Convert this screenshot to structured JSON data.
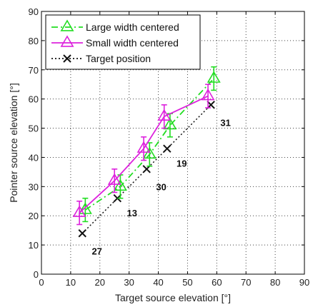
{
  "chart_data": {
    "type": "line",
    "xlabel": "Target source elevation [°]",
    "ylabel": "Pointer source elevation [°]",
    "xlim": [
      0,
      90
    ],
    "ylim": [
      0,
      90
    ],
    "xticks": [
      0,
      10,
      20,
      30,
      40,
      50,
      60,
      70,
      80,
      90
    ],
    "yticks": [
      0,
      10,
      20,
      30,
      40,
      50,
      60,
      70,
      80,
      90
    ],
    "grid": true,
    "legend_position": "top-left",
    "series": [
      {
        "name": "Large width centered",
        "color": "#22dd22",
        "style": "dash-dot",
        "marker": "triangle",
        "x": [
          15,
          27,
          37,
          44,
          59
        ],
        "y": [
          22,
          30,
          41,
          51,
          67
        ],
        "err": [
          4,
          4,
          4,
          4,
          4
        ]
      },
      {
        "name": "Small width centered",
        "color": "#dd22dd",
        "style": "solid",
        "marker": "triangle",
        "x": [
          13,
          25,
          35,
          42,
          57
        ],
        "y": [
          21,
          32,
          43,
          54,
          61
        ],
        "err": [
          4,
          4,
          4,
          4,
          4
        ]
      },
      {
        "name": "Target position",
        "color": "#111111",
        "style": "dotted",
        "marker": "x",
        "x": [
          14,
          26,
          36,
          43,
          58
        ],
        "y": [
          14,
          26,
          36,
          43,
          58
        ]
      }
    ],
    "annotations": [
      {
        "text": "27",
        "x": 19,
        "y": 8
      },
      {
        "text": "13",
        "x": 31,
        "y": 21
      },
      {
        "text": "30",
        "x": 41,
        "y": 30
      },
      {
        "text": "19",
        "x": 48,
        "y": 38
      },
      {
        "text": "31",
        "x": 63,
        "y": 52
      }
    ]
  }
}
